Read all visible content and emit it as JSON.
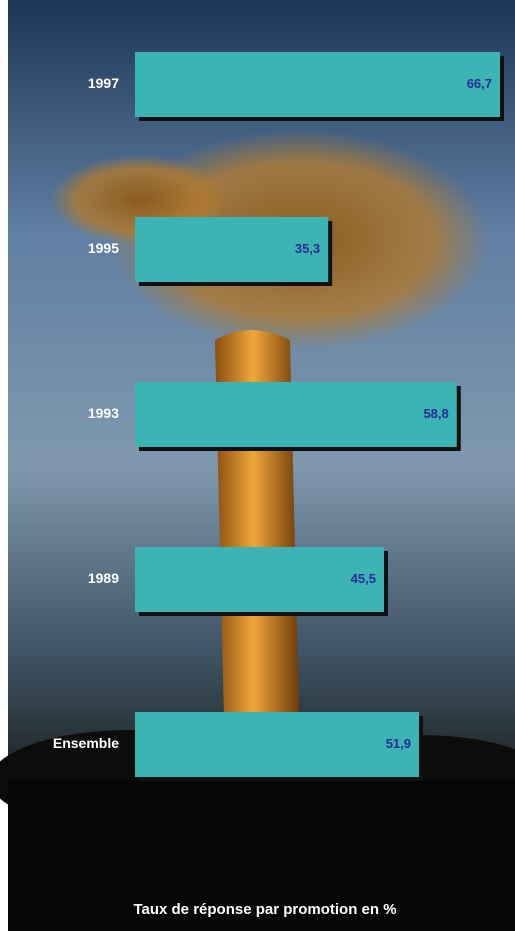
{
  "chart_data": {
    "type": "barh",
    "title": "Taux de réponse par promotion en %",
    "categories": [
      "1997",
      "1995",
      "1993",
      "1989",
      "Ensemble"
    ],
    "values": [
      66.7,
      35.3,
      58.8,
      45.5,
      51.9
    ],
    "value_labels": [
      "66,7",
      "35,3",
      "58,8",
      "45,5",
      "51,9"
    ],
    "color": "#3cb4b4"
  }
}
